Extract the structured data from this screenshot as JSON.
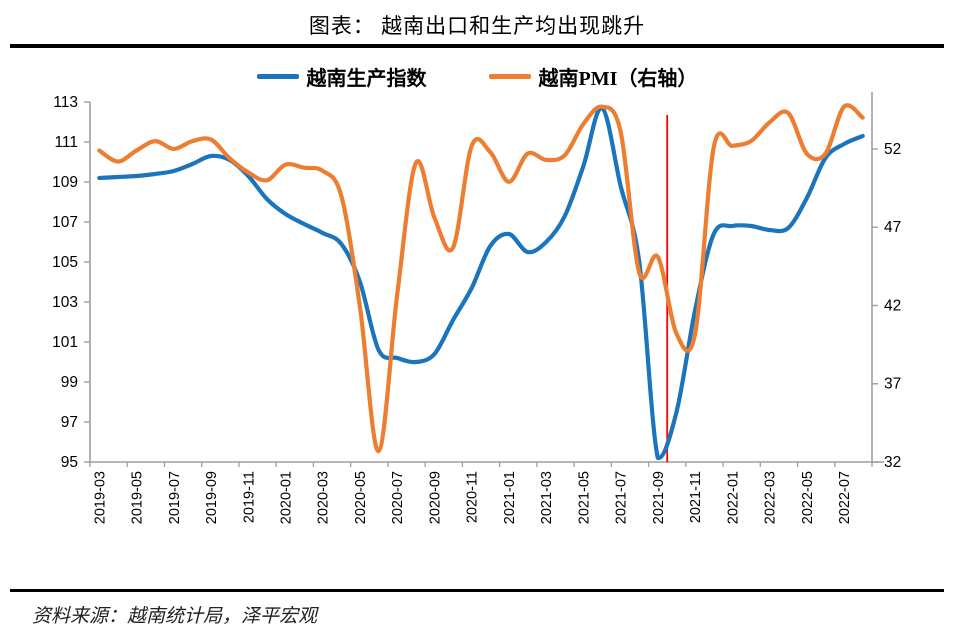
{
  "title": "图表：  越南出口和生产均出现跳升",
  "source": "资料来源：越南统计局，泽平宏观",
  "legend": [
    {
      "label": "越南生产指数",
      "color": "#1B75BC"
    },
    {
      "label": "越南PMI（右轴）",
      "color": "#ED7D31"
    }
  ],
  "chart_data": {
    "type": "line",
    "title": "图表： 越南出口和生产均出现跳升",
    "xlabel": "",
    "ylabel_left": "",
    "ylabel_right": "",
    "grid": false,
    "legend_position": "top",
    "axis_color": "#9E9E9E",
    "tick_font_color": "#000000",
    "x": [
      "2019-03",
      "2019-04",
      "2019-05",
      "2019-06",
      "2019-07",
      "2019-08",
      "2019-09",
      "2019-10",
      "2019-11",
      "2019-12",
      "2020-01",
      "2020-02",
      "2020-03",
      "2020-04",
      "2020-05",
      "2020-06",
      "2020-07",
      "2020-08",
      "2020-09",
      "2020-10",
      "2020-11",
      "2020-12",
      "2021-01",
      "2021-02",
      "2021-03",
      "2021-04",
      "2021-05",
      "2021-06",
      "2021-07",
      "2021-08",
      "2021-09",
      "2021-10",
      "2021-11",
      "2021-12",
      "2022-01",
      "2022-02",
      "2022-03",
      "2022-04",
      "2022-05",
      "2022-06",
      "2022-07",
      "2022-08"
    ],
    "x_tick_labels": [
      "2019-03",
      "2019-05",
      "2019-07",
      "2019-09",
      "2019-11",
      "2020-01",
      "2020-03",
      "2020-05",
      "2020-07",
      "2020-09",
      "2020-11",
      "2021-01",
      "2021-03",
      "2021-05",
      "2021-07",
      "2021-09",
      "2021-11",
      "2022-01",
      "2022-03",
      "2022-05",
      "2022-07"
    ],
    "series": [
      {
        "name": "越南生产指数",
        "axis": "left",
        "color": "#1B75BC",
        "values": [
          109.2,
          109.25,
          109.3,
          109.4,
          109.55,
          109.9,
          110.3,
          110.1,
          109.3,
          108.15,
          107.4,
          106.9,
          106.45,
          105.9,
          104.0,
          100.6,
          100.2,
          100.0,
          100.4,
          102.1,
          103.7,
          105.8,
          106.4,
          105.5,
          106.0,
          107.3,
          109.8,
          112.7,
          108.8,
          105.0,
          95.2,
          97.5,
          102.6,
          106.4,
          106.8,
          106.8,
          106.6,
          106.7,
          108.2,
          110.2,
          110.9,
          111.3
        ]
      },
      {
        "name": "越南PMI（右轴）",
        "axis": "right",
        "color": "#ED7D31",
        "values": [
          51.9,
          51.2,
          51.9,
          52.5,
          52.0,
          52.5,
          52.6,
          51.4,
          50.5,
          50.0,
          51.0,
          50.8,
          50.6,
          49.0,
          41.9,
          32.7,
          42.7,
          51.1,
          47.6,
          45.7,
          52.2,
          51.8,
          49.9,
          51.7,
          51.3,
          51.6,
          53.6,
          54.7,
          53.1,
          44.1,
          45.1,
          40.2,
          40.2,
          52.1,
          52.2,
          52.5,
          53.7,
          54.3,
          51.7,
          51.7,
          54.7,
          54.0
        ]
      }
    ],
    "left_axis": {
      "min": 95,
      "max": 113,
      "ticks": [
        113,
        111,
        109,
        107,
        105,
        103,
        101,
        99,
        97,
        95
      ]
    },
    "right_axis": {
      "min": 32,
      "max": 55,
      "ticks": [
        52,
        47,
        42,
        37,
        32
      ]
    },
    "marker_line": {
      "before_month": "2021-10",
      "color": "#FF0000"
    }
  }
}
